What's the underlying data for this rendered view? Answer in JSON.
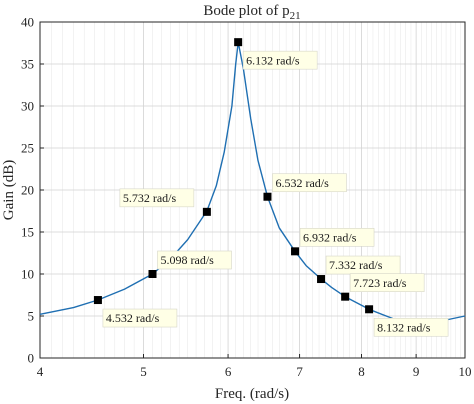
{
  "chart_data": {
    "type": "line",
    "title": "Bode plot of p",
    "title_subscript": "21",
    "xlabel": "Freq. (rad/s)",
    "ylabel": "Gain (dB)",
    "xscale": "log",
    "xlim": [
      4,
      10
    ],
    "ylim": [
      0,
      40
    ],
    "grid": true,
    "xticks": [
      4,
      5,
      6,
      7,
      8,
      9,
      10
    ],
    "xtick_labels": [
      "4",
      "5",
      "6",
      "7",
      "8",
      "9",
      "10"
    ],
    "yticks": [
      0,
      5,
      10,
      15,
      20,
      25,
      30,
      35,
      40
    ],
    "ytick_labels": [
      "0",
      "5",
      "10",
      "15",
      "20",
      "25",
      "30",
      "35",
      "40"
    ],
    "line_color": "#1f6fb2",
    "marker_color": "#000000",
    "series": [
      {
        "x": [
          4.0,
          4.3,
          4.532,
          4.8,
          5.098,
          5.3,
          5.5,
          5.732,
          5.85,
          5.95,
          6.05,
          6.1,
          6.132,
          6.2,
          6.3,
          6.4,
          6.532,
          6.7,
          6.932,
          7.1,
          7.332,
          7.5,
          7.723,
          8.132,
          8.6,
          9.0,
          9.5,
          10.0
        ],
        "y": [
          5.2,
          6.0,
          6.9,
          8.2,
          10.0,
          11.8,
          14.1,
          17.5,
          20.5,
          24.5,
          30.0,
          35.0,
          37.6,
          34.5,
          28.5,
          23.5,
          19.2,
          15.5,
          12.7,
          11.0,
          9.4,
          8.4,
          7.3,
          5.8,
          4.6,
          4.3,
          4.4,
          5.0
        ]
      }
    ],
    "markers": [
      {
        "x": 4.532,
        "y": 6.9
      },
      {
        "x": 5.098,
        "y": 10.0
      },
      {
        "x": 5.732,
        "y": 17.4
      },
      {
        "x": 6.132,
        "y": 37.6
      },
      {
        "x": 6.532,
        "y": 19.2
      },
      {
        "x": 6.932,
        "y": 12.7
      },
      {
        "x": 7.332,
        "y": 9.4
      },
      {
        "x": 7.723,
        "y": 7.3
      },
      {
        "x": 8.132,
        "y": 5.8
      }
    ],
    "annotations": [
      {
        "text": "4.532 rad/s",
        "x": 4.532,
        "y": 6.9,
        "placement": "below-right"
      },
      {
        "text": "5.098 rad/s",
        "x": 5.098,
        "y": 10.0,
        "placement": "above-right"
      },
      {
        "text": "5.732 rad/s",
        "x": 5.732,
        "y": 17.4,
        "placement": "above-left"
      },
      {
        "text": "6.132 rad/s",
        "x": 6.132,
        "y": 37.6,
        "placement": "below-right"
      },
      {
        "text": "6.532 rad/s",
        "x": 6.532,
        "y": 19.2,
        "placement": "above-right"
      },
      {
        "text": "6.932 rad/s",
        "x": 6.932,
        "y": 12.7,
        "placement": "above-right"
      },
      {
        "text": "7.332 rad/s",
        "x": 7.332,
        "y": 9.4,
        "placement": "above-right"
      },
      {
        "text": "7.723 rad/s",
        "x": 7.723,
        "y": 7.3,
        "placement": "above-right"
      },
      {
        "text": "8.132 rad/s",
        "x": 8.132,
        "y": 5.8,
        "placement": "below-right"
      }
    ]
  }
}
